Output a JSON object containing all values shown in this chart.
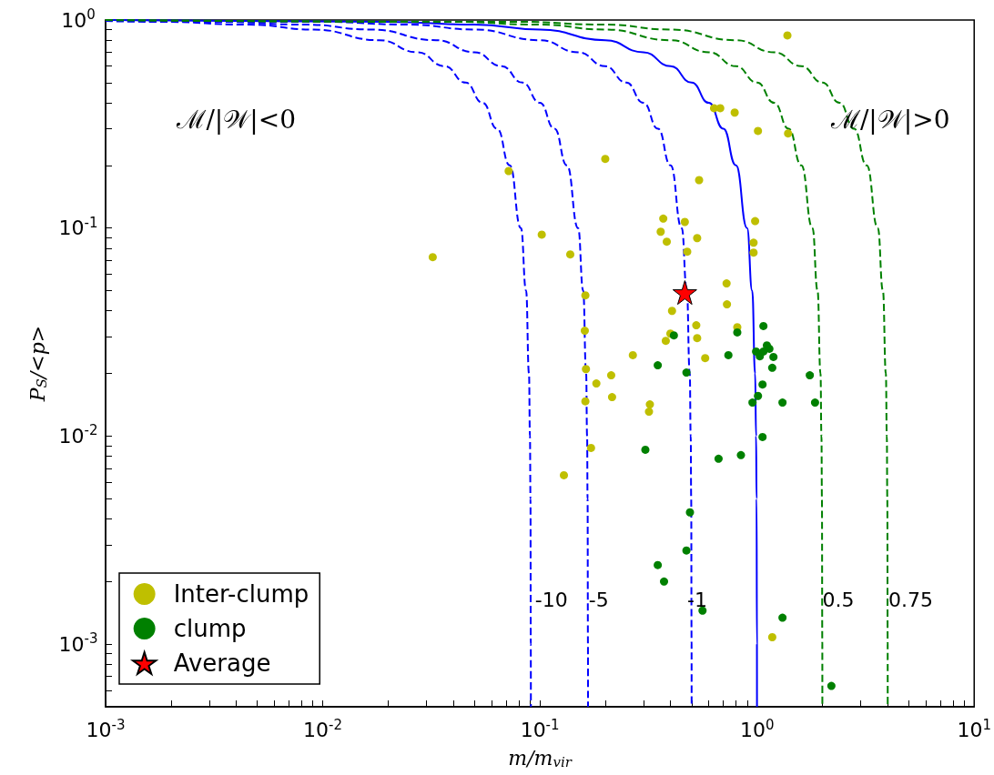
{
  "chart_data": {
    "type": "scatter",
    "xlabel": "m/m$_{vir}$",
    "ylabel": "P$_{S}$/<p>",
    "log": "xy",
    "grid": false,
    "legend": "bottom left",
    "xlim": [
      0.001,
      10
    ],
    "ylim": [
      0.0005,
      1
    ],
    "xticks": [
      {
        "value": 0.001,
        "label": "10$^{-3}$"
      },
      {
        "value": 0.002,
        "label": null
      },
      {
        "value": 0.003,
        "label": null
      },
      {
        "value": 0.004,
        "label": null
      },
      {
        "value": 0.005,
        "label": null
      },
      {
        "value": 0.006,
        "label": null
      },
      {
        "value": 0.007,
        "label": null
      },
      {
        "value": 0.008,
        "label": null
      },
      {
        "value": 0.009,
        "label": null
      },
      {
        "value": 0.01,
        "label": "10$^{-2}$"
      },
      {
        "value": 0.02,
        "label": null
      },
      {
        "value": 0.03,
        "label": null
      },
      {
        "value": 0.04,
        "label": null
      },
      {
        "value": 0.05,
        "label": null
      },
      {
        "value": 0.06,
        "label": null
      },
      {
        "value": 0.07,
        "label": null
      },
      {
        "value": 0.08,
        "label": null
      },
      {
        "value": 0.09,
        "label": null
      },
      {
        "value": 0.1,
        "label": "10$^{-1}$"
      },
      {
        "value": 0.2,
        "label": null
      },
      {
        "value": 0.3,
        "label": null
      },
      {
        "value": 0.4,
        "label": null
      },
      {
        "value": 0.5,
        "label": null
      },
      {
        "value": 0.6,
        "label": null
      },
      {
        "value": 0.7,
        "label": null
      },
      {
        "value": 0.8,
        "label": null
      },
      {
        "value": 0.9,
        "label": null
      },
      {
        "value": 1,
        "label": "10$^{0}$"
      },
      {
        "value": 2,
        "label": null
      },
      {
        "value": 3,
        "label": null
      },
      {
        "value": 4,
        "label": null
      },
      {
        "value": 5,
        "label": null
      },
      {
        "value": 6,
        "label": null
      },
      {
        "value": 7,
        "label": null
      },
      {
        "value": 8,
        "label": null
      },
      {
        "value": 9,
        "label": null
      },
      {
        "value": 10,
        "label": "10$^{1}$"
      }
    ],
    "yticks": [
      {
        "value": 0.0006,
        "label": null
      },
      {
        "value": 0.0007,
        "label": null
      },
      {
        "value": 0.0008,
        "label": null
      },
      {
        "value": 0.0009,
        "label": null
      },
      {
        "value": 0.001,
        "label": "10$^{-3}$"
      },
      {
        "value": 0.002,
        "label": null
      },
      {
        "value": 0.003,
        "label": null
      },
      {
        "value": 0.004,
        "label": null
      },
      {
        "value": 0.005,
        "label": null
      },
      {
        "value": 0.006,
        "label": null
      },
      {
        "value": 0.007,
        "label": null
      },
      {
        "value": 0.008,
        "label": null
      },
      {
        "value": 0.009,
        "label": null
      },
      {
        "value": 0.01,
        "label": "10$^{-2}$"
      },
      {
        "value": 0.02,
        "label": null
      },
      {
        "value": 0.03,
        "label": null
      },
      {
        "value": 0.04,
        "label": null
      },
      {
        "value": 0.05,
        "label": null
      },
      {
        "value": 0.06,
        "label": null
      },
      {
        "value": 0.07,
        "label": null
      },
      {
        "value": 0.08,
        "label": null
      },
      {
        "value": 0.09,
        "label": null
      },
      {
        "value": 0.1,
        "label": "10$^{-1}$"
      },
      {
        "value": 0.2,
        "label": null
      },
      {
        "value": 0.3,
        "label": null
      },
      {
        "value": 0.4,
        "label": null
      },
      {
        "value": 0.5,
        "label": null
      },
      {
        "value": 0.6,
        "label": null
      },
      {
        "value": 0.7,
        "label": null
      },
      {
        "value": 0.8,
        "label": null
      },
      {
        "value": 0.9,
        "label": null
      },
      {
        "value": 1,
        "label": "10$^{0}$"
      }
    ],
    "annotations": [
      "ℳ/|𝒲|<0",
      "ℳ/|𝒲|>0",
      {
        "text": "-10",
        "x": 0.095,
        "y": 0.00164
      },
      {
        "text": "-5",
        "x": 0.168,
        "y": 0.00164
      },
      {
        "text": "-1",
        "x": 0.477,
        "y": 0.00164
      },
      {
        "text": "0.5",
        "x": 2.0,
        "y": 0.00164
      },
      {
        "text": "0.75",
        "x": 4.03,
        "y": 0.00164
      }
    ],
    "series": [
      {
        "type": "line",
        "color": "#0000ff",
        "line_style": "dashed",
        "marker": "none",
        "x": [
          0.001,
          0.00182,
          0.00455,
          0.00909,
          0.0182,
          0.0273,
          0.0364,
          0.0455,
          0.0545,
          0.0636,
          0.0727,
          0.0818,
          0.0864,
          0.0891,
          0.09,
          0.0905,
          0.0908,
          0.0909
        ],
        "values": [
          0.989,
          0.98,
          0.95,
          0.9,
          0.8,
          0.7,
          0.6,
          0.5,
          0.4,
          0.3,
          0.2,
          0.1,
          0.05,
          0.02,
          0.01,
          0.005,
          0.001,
          0.0005
        ]
      },
      {
        "type": "line",
        "color": "#0000ff",
        "line_style": "dashed",
        "marker": "none",
        "x": [
          0.001,
          0.00333,
          0.00833,
          0.0167,
          0.0333,
          0.05,
          0.0667,
          0.0833,
          0.1,
          0.1167,
          0.1333,
          0.15,
          0.1583,
          0.1633,
          0.165,
          0.1658,
          0.1665,
          0.1666
        ],
        "values": [
          0.994,
          0.98,
          0.95,
          0.9,
          0.8,
          0.7,
          0.6,
          0.5,
          0.4,
          0.3,
          0.2,
          0.1,
          0.05,
          0.02,
          0.01,
          0.005,
          0.001,
          0.0005
        ]
      },
      {
        "type": "line",
        "color": "#0000ff",
        "line_style": "dashed",
        "marker": "none",
        "x": [
          0.001,
          0.01,
          0.025,
          0.05,
          0.1,
          0.15,
          0.2,
          0.25,
          0.3,
          0.35,
          0.4,
          0.45,
          0.475,
          0.49,
          0.495,
          0.4975,
          0.4995,
          0.4998
        ],
        "values": [
          0.998,
          0.98,
          0.95,
          0.9,
          0.8,
          0.7,
          0.6,
          0.5,
          0.4,
          0.3,
          0.2,
          0.1,
          0.05,
          0.02,
          0.01,
          0.005,
          0.001,
          0.0005
        ]
      },
      {
        "type": "line",
        "color": "#0000ff",
        "line_style": "solid",
        "marker": "none",
        "x": [
          0.001,
          0.02,
          0.05,
          0.1,
          0.2,
          0.3,
          0.4,
          0.5,
          0.6,
          0.7,
          0.8,
          0.9,
          0.95,
          0.98,
          0.99,
          0.995,
          0.999,
          0.9995
        ],
        "values": [
          0.999,
          0.98,
          0.95,
          0.9,
          0.8,
          0.7,
          0.6,
          0.5,
          0.4,
          0.3,
          0.2,
          0.1,
          0.05,
          0.02,
          0.01,
          0.005,
          0.001,
          0.0005
        ]
      },
      {
        "type": "line",
        "color": "#008000",
        "line_style": "dashed",
        "marker": "none",
        "x": [
          0.001,
          0.04,
          0.1,
          0.2,
          0.4,
          0.6,
          0.8,
          1,
          1.2,
          1.4,
          1.6,
          1.8,
          1.9,
          1.96,
          1.98,
          1.99,
          1.998,
          1.999
        ],
        "values": [
          0.9995,
          0.98,
          0.95,
          0.9,
          0.8,
          0.7,
          0.6,
          0.5,
          0.4,
          0.3,
          0.2,
          0.1,
          0.05,
          0.02,
          0.01,
          0.005,
          0.001,
          0.0005
        ]
      },
      {
        "type": "line",
        "color": "#008000",
        "line_style": "dashed",
        "marker": "none",
        "x": [
          0.001,
          0.08,
          0.2,
          0.4,
          0.8,
          1.2,
          1.6,
          2,
          2.4,
          2.8,
          3.2,
          3.6,
          3.8,
          3.92,
          3.96,
          3.98,
          3.996,
          3.998
        ],
        "values": [
          0.99975,
          0.98,
          0.95,
          0.9,
          0.8,
          0.7,
          0.6,
          0.5,
          0.4,
          0.3,
          0.2,
          0.1,
          0.05,
          0.02,
          0.01,
          0.005,
          0.001,
          0.0005
        ]
      },
      {
        "type": "scatter",
        "name": "Inter-clump",
        "color": "#bfbf00",
        "marker": "circle",
        "x": [
          1.38,
          0.634,
          0.677,
          0.789,
          1.01,
          1.39,
          0.2,
          0.0718,
          0.541,
          0.37,
          0.465,
          0.98,
          0.36,
          0.102,
          0.384,
          0.53,
          0.964,
          0.964,
          0.477,
          0.0321,
          0.138,
          0.724,
          0.162,
          0.727,
          0.406,
          0.525,
          0.811,
          0.161,
          0.399,
          0.53,
          0.38,
          0.268,
          0.577,
          0.163,
          0.213,
          0.182,
          0.162,
          0.215,
          0.321,
          0.318,
          0.172,
          0.129,
          1.175
        ],
        "values": [
          0.843,
          0.377,
          0.377,
          0.359,
          0.293,
          0.285,
          0.215,
          0.188,
          0.17,
          0.111,
          0.107,
          0.108,
          0.096,
          0.093,
          0.086,
          0.0895,
          0.085,
          0.0762,
          0.077,
          0.0725,
          0.0747,
          0.0542,
          0.0475,
          0.043,
          0.04,
          0.0341,
          0.0334,
          0.0321,
          0.0311,
          0.0296,
          0.0287,
          0.0245,
          0.0237,
          0.021,
          0.0196,
          0.0179,
          0.0147,
          0.0154,
          0.0142,
          0.0131,
          0.00877,
          0.00649,
          0.00108
        ]
      },
      {
        "type": "scatter",
        "name": "clump",
        "color": "#008000",
        "marker": "circle",
        "x": [
          0.414,
          0.811,
          1.07,
          1.11,
          1.14,
          0.99,
          1.03,
          1.07,
          1.19,
          0.738,
          0.349,
          0.473,
          1.175,
          1.75,
          1.06,
          1.01,
          0.953,
          1.31,
          1.85,
          1.06,
          0.306,
          0.665,
          0.843,
          0.491,
          0.473,
          0.349,
          0.373,
          0.561,
          1.31,
          2.2
        ],
        "values": [
          0.0305,
          0.0315,
          0.0338,
          0.0273,
          0.0263,
          0.0255,
          0.0242,
          0.0255,
          0.024,
          0.0245,
          0.0219,
          0.0202,
          0.0213,
          0.0196,
          0.0177,
          0.0156,
          0.0145,
          0.0145,
          0.0145,
          0.0099,
          0.0086,
          0.00778,
          0.0081,
          0.0043,
          0.00282,
          0.0024,
          0.002,
          0.00145,
          0.00134,
          0.00063
        ]
      },
      {
        "type": "scatter",
        "name": "Average",
        "color": "#ff0000",
        "marker": "star",
        "x": [
          0.465
        ],
        "values": [
          0.049
        ]
      }
    ]
  }
}
